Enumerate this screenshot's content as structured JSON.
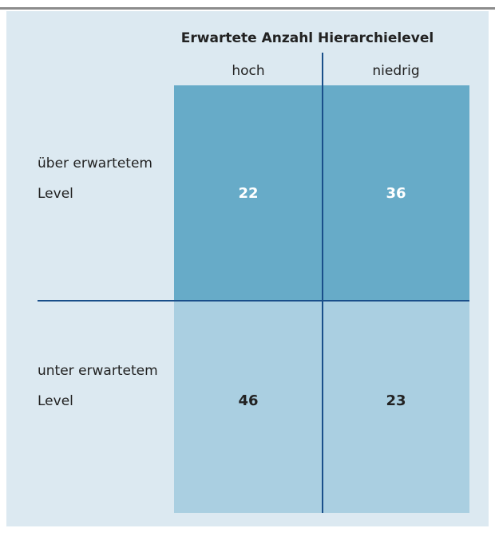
{
  "title": "Erwartete Anzahl Hierarchielevel",
  "columns": [
    "hoch",
    "niedrig"
  ],
  "rows": [
    {
      "label": [
        "über erwartetem",
        "Level"
      ],
      "cells": [
        22,
        36
      ]
    },
    {
      "label": [
        "unter erwartetem",
        "Level"
      ],
      "cells": [
        46,
        23
      ]
    }
  ]
}
